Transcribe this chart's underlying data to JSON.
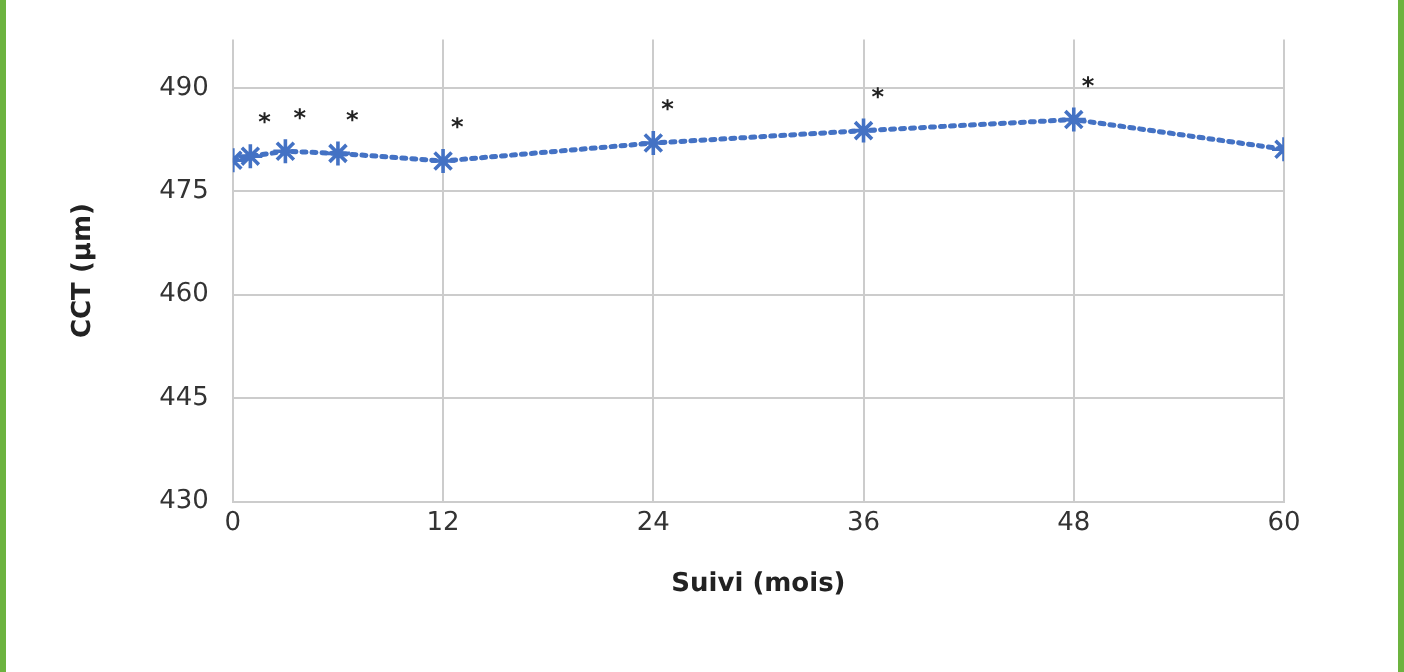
{
  "chart_data": {
    "type": "line",
    "xlabel": "Suivi (mois)",
    "ylabel": "CCT (µm)",
    "x": [
      0,
      1,
      3,
      6,
      12,
      24,
      36,
      48,
      60
    ],
    "series": [
      {
        "color": "#4472c4",
        "values": [
          479.5,
          480.1,
          480.8,
          480.5,
          479.4,
          482,
          483.8,
          485.4,
          481.1
        ]
      }
    ],
    "xlim": [
      0,
      60
    ],
    "xticks": [
      0,
      12,
      24,
      36,
      48,
      60
    ],
    "ylim": [
      430,
      497
    ],
    "yticks": [
      430,
      445,
      460,
      475,
      490
    ],
    "grid": true,
    "legend": false,
    "marker": "cross",
    "line_style": "dotted",
    "annotations": [
      {
        "text": "*",
        "x": 1,
        "y": 480.1
      },
      {
        "text": "*",
        "x": 3,
        "y": 480.8
      },
      {
        "text": "*",
        "x": 6,
        "y": 480.5
      },
      {
        "text": "*",
        "x": 12,
        "y": 479.4
      },
      {
        "text": "*",
        "x": 24,
        "y": 482
      },
      {
        "text": "*",
        "x": 36,
        "y": 483.8
      },
      {
        "text": "*",
        "x": 48,
        "y": 485.4
      }
    ]
  }
}
